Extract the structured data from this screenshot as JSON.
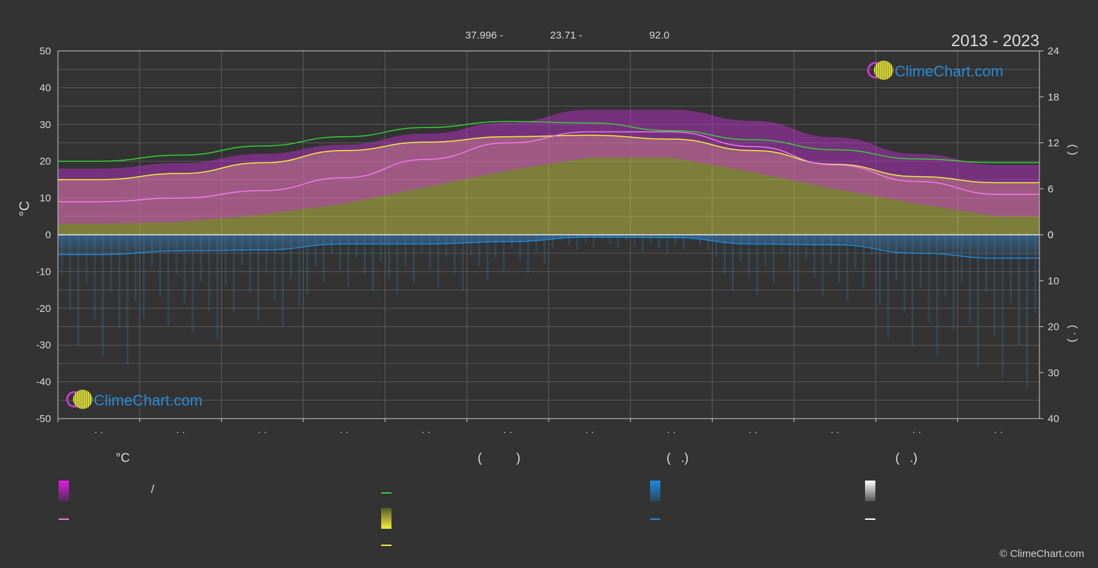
{
  "period_label": "2013 - 2023",
  "top_stats": [
    "37.996 -",
    "23.71 -",
    "92.0"
  ],
  "copyright": "© ClimeChart.com",
  "logo_top": "ClimeChart.com",
  "logo_bottom": "ClimeChart.com",
  "colors": {
    "background": "#333333",
    "max_min_fill": "#c82fd6",
    "sunshine_fill": "#e4e44a",
    "daylight_line": "#35d035",
    "sunshine_line": "#f4f03c",
    "mean_line": "#f07ae8",
    "precip_fill": "#3a83c4",
    "precip_line": "#1d8ae0",
    "snow_line": "#ffffff"
  },
  "legend": {
    "headers": [
      "°C",
      "(          )",
      "(   .)",
      "(   .)"
    ],
    "temp_range_label": "/"
  },
  "chart_data": {
    "type": "area",
    "title": "",
    "xlabel": "",
    "ylabel": "°C",
    "ylim": [
      -50,
      50
    ],
    "y_ticks": [
      50,
      40,
      30,
      20,
      10,
      0,
      -10,
      -20,
      -30,
      -40,
      -50
    ],
    "right_axis_upper": {
      "label": "(    )",
      "ylim": [
        0,
        24
      ],
      "ticks": [
        24,
        18,
        12,
        6,
        0
      ]
    },
    "right_axis_lower": {
      "label": "(  .  )",
      "ylim": [
        0,
        40
      ],
      "ticks": [
        0,
        10,
        20,
        30,
        40
      ]
    },
    "x_tick_labels": [
      "· ·",
      "· ·",
      "· ·",
      "· ·",
      "· ·",
      "· ·",
      "· ·",
      "· ·",
      "· ·",
      "· ·",
      "· ·",
      "· ·"
    ],
    "months": 12,
    "grid": true,
    "series": [
      {
        "key": "daylight",
        "unit": "hours",
        "values": [
          9.6,
          10.4,
          11.6,
          12.8,
          14.0,
          14.8,
          14.6,
          13.6,
          12.4,
          11.1,
          9.9,
          9.4
        ]
      },
      {
        "key": "sunshine",
        "unit": "hours",
        "values": [
          7.2,
          8.0,
          9.4,
          11.0,
          12.1,
          12.8,
          13.0,
          12.5,
          11.0,
          9.2,
          7.6,
          6.8
        ]
      },
      {
        "key": "mean_temp",
        "unit": "°C",
        "values": [
          9.0,
          10.0,
          12.0,
          15.5,
          20.5,
          25.0,
          28.0,
          28.0,
          24.0,
          19.0,
          14.5,
          11.0
        ]
      },
      {
        "key": "max_temp",
        "unit": "°C",
        "values": [
          18.0,
          19.5,
          22.0,
          24.5,
          27.5,
          30.5,
          34.0,
          34.0,
          31.0,
          26.5,
          22.0,
          19.0
        ]
      },
      {
        "key": "min_temp",
        "unit": "°C",
        "values": [
          3.0,
          3.5,
          5.5,
          8.5,
          13.0,
          17.5,
          21.0,
          21.0,
          17.0,
          12.5,
          8.5,
          5.0
        ]
      },
      {
        "key": "precip",
        "unit": "mm/day",
        "values": [
          4.3,
          3.5,
          3.3,
          2.0,
          2.0,
          1.5,
          0.5,
          0.6,
          2.0,
          2.2,
          4.0,
          5.1
        ]
      }
    ]
  }
}
